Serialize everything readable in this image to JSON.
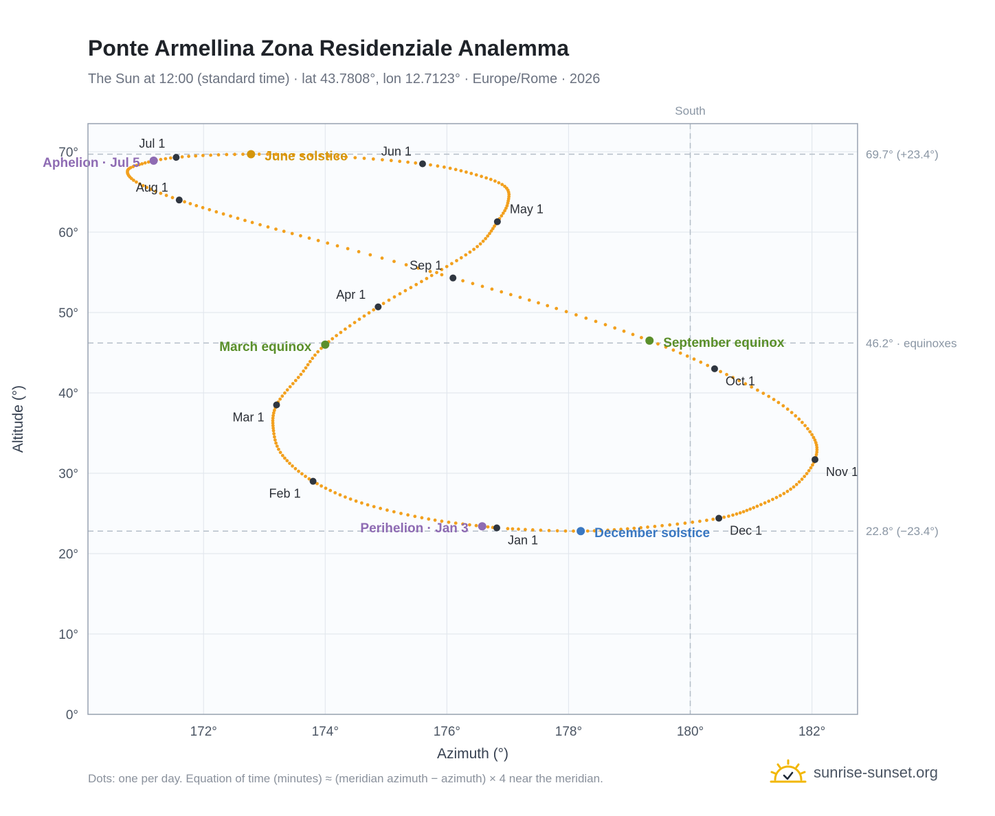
{
  "title": "Ponte Armellina Zona Residenziale Analemma",
  "subtitle": "The Sun at 12:00 (standard time) · lat 43.7808°, lon 12.7123° · Europe/Rome · 2026",
  "footnote": "Dots: one per day. Equation of time (minutes) ≈ (meridian azimuth − azimuth) × 4 near the meridian.",
  "brand": {
    "name": "sunrise-sunset.org",
    "icon": "sun-logo-icon",
    "color": "#f2b705"
  },
  "chart_data": {
    "type": "scatter",
    "xlabel": "Azimuth (°)",
    "ylabel": "Altitude (°)",
    "xlim": [
      170.1,
      182.75
    ],
    "ylim": [
      0,
      73.5
    ],
    "grid": true,
    "x_ticks": [
      172,
      174,
      176,
      178,
      180,
      182
    ],
    "x_tick_labels": [
      "172°",
      "174°",
      "176°",
      "178°",
      "180°",
      "182°"
    ],
    "y_ticks": [
      0,
      10,
      20,
      30,
      40,
      50,
      60,
      70
    ],
    "y_tick_labels": [
      "0°",
      "10°",
      "20°",
      "30°",
      "40°",
      "50°",
      "60°",
      "70°"
    ],
    "colors": {
      "curve": "#f2a01e",
      "month_marker": "#2f3640",
      "solstice_june": "#d4950b",
      "solstice_december": "#3a78c2",
      "equinox": "#5a8f2a",
      "apsis": "#8e6bb3",
      "reference_line": "#b4bec8",
      "plot_background": "#fafcfe",
      "plot_border": "#98a2b0",
      "grid": "#e3e8ee"
    },
    "reference_lines": {
      "south": {
        "x": 180,
        "label": "South"
      },
      "horizontal": [
        {
          "y": 69.7,
          "label": "69.7° (+23.4°)"
        },
        {
          "y": 46.2,
          "label": "46.2° · equinoxes"
        },
        {
          "y": 22.8,
          "label": "22.8° (−23.4°)"
        }
      ]
    },
    "curve_keypoints": [
      {
        "doy": 1,
        "x": 176.82,
        "y": 23.2
      },
      {
        "doy": 12,
        "x": 175.7,
        "y": 24.3
      },
      {
        "doy": 22,
        "x": 174.6,
        "y": 26.3
      },
      {
        "doy": 32,
        "x": 173.8,
        "y": 29.0
      },
      {
        "doy": 42,
        "x": 173.3,
        "y": 32.2
      },
      {
        "doy": 50,
        "x": 173.15,
        "y": 35.3
      },
      {
        "doy": 60,
        "x": 173.2,
        "y": 38.5
      },
      {
        "doy": 70,
        "x": 173.6,
        "y": 42.3
      },
      {
        "doy": 79,
        "x": 174.0,
        "y": 46.0
      },
      {
        "doy": 91,
        "x": 174.87,
        "y": 50.7
      },
      {
        "doy": 101,
        "x": 175.75,
        "y": 54.6
      },
      {
        "doy": 111,
        "x": 176.5,
        "y": 58.2
      },
      {
        "doy": 121,
        "x": 176.83,
        "y": 61.3
      },
      {
        "doy": 128,
        "x": 177.0,
        "y": 63.6
      },
      {
        "doy": 136,
        "x": 176.95,
        "y": 65.7
      },
      {
        "doy": 144,
        "x": 176.4,
        "y": 67.3
      },
      {
        "doy": 152,
        "x": 175.6,
        "y": 68.5
      },
      {
        "doy": 162,
        "x": 174.2,
        "y": 69.4
      },
      {
        "doy": 172,
        "x": 172.78,
        "y": 69.7
      },
      {
        "doy": 182,
        "x": 171.55,
        "y": 69.3
      },
      {
        "doy": 192,
        "x": 170.9,
        "y": 68.3
      },
      {
        "doy": 198,
        "x": 170.75,
        "y": 67.4
      },
      {
        "doy": 205,
        "x": 170.95,
        "y": 66.0
      },
      {
        "doy": 213,
        "x": 171.6,
        "y": 64.0
      },
      {
        "doy": 224,
        "x": 172.8,
        "y": 61.2
      },
      {
        "doy": 234,
        "x": 174.2,
        "y": 58.3
      },
      {
        "doy": 244,
        "x": 176.1,
        "y": 54.3
      },
      {
        "doy": 255,
        "x": 177.8,
        "y": 50.5
      },
      {
        "doy": 265,
        "x": 179.33,
        "y": 46.5
      },
      {
        "doy": 274,
        "x": 180.4,
        "y": 43.0
      },
      {
        "doy": 285,
        "x": 181.45,
        "y": 38.8
      },
      {
        "doy": 295,
        "x": 182.0,
        "y": 34.8
      },
      {
        "doy": 305,
        "x": 182.05,
        "y": 31.7
      },
      {
        "doy": 315,
        "x": 181.7,
        "y": 28.3
      },
      {
        "doy": 325,
        "x": 181.1,
        "y": 25.9
      },
      {
        "doy": 335,
        "x": 180.47,
        "y": 24.4
      },
      {
        "doy": 345,
        "x": 179.3,
        "y": 23.3
      },
      {
        "doy": 355,
        "x": 178.2,
        "y": 22.8
      },
      {
        "doy": 365,
        "x": 177.0,
        "y": 23.1
      }
    ],
    "month_markers": [
      {
        "label": "Jan 1",
        "x": 176.82,
        "y": 23.2,
        "anchor": "start",
        "dx": 16,
        "dy": 24
      },
      {
        "label": "Feb 1",
        "x": 173.8,
        "y": 29.0,
        "anchor": "end",
        "dx": -18,
        "dy": 24
      },
      {
        "label": "Mar 1",
        "x": 173.2,
        "y": 38.5,
        "anchor": "end",
        "dx": -18,
        "dy": 24
      },
      {
        "label": "Apr 1",
        "x": 174.87,
        "y": 50.7,
        "anchor": "end",
        "dx": -18,
        "dy": -12
      },
      {
        "label": "May 1",
        "x": 176.83,
        "y": 61.3,
        "anchor": "start",
        "dx": 18,
        "dy": -12
      },
      {
        "label": "Jun 1",
        "x": 175.6,
        "y": 68.5,
        "anchor": "end",
        "dx": -16,
        "dy": -12
      },
      {
        "label": "Jul 1",
        "x": 171.55,
        "y": 69.3,
        "anchor": "end",
        "dx": -16,
        "dy": -14
      },
      {
        "label": "Aug 1",
        "x": 171.6,
        "y": 64.0,
        "anchor": "end",
        "dx": -16,
        "dy": -12
      },
      {
        "label": "Sep 1",
        "x": 176.1,
        "y": 54.3,
        "anchor": "end",
        "dx": -16,
        "dy": -12
      },
      {
        "label": "Oct 1",
        "x": 180.4,
        "y": 43.0,
        "anchor": "start",
        "dx": 16,
        "dy": 24
      },
      {
        "label": "Nov 1",
        "x": 182.05,
        "y": 31.7,
        "anchor": "start",
        "dx": 16,
        "dy": 24
      },
      {
        "label": "Dec 1",
        "x": 180.47,
        "y": 24.4,
        "anchor": "start",
        "dx": 16,
        "dy": 24
      }
    ],
    "events": [
      {
        "label": "June solstice",
        "x": 172.78,
        "y": 69.7,
        "color": "#d4950b",
        "anchor": "start",
        "dx": 20,
        "dy": 9
      },
      {
        "label": "December solstice",
        "x": 178.2,
        "y": 22.8,
        "color": "#3a78c2",
        "anchor": "start",
        "dx": 20,
        "dy": 9
      },
      {
        "label": "March equinox",
        "x": 174.0,
        "y": 46.0,
        "color": "#5a8f2a",
        "anchor": "end",
        "dx": -20,
        "dy": 9
      },
      {
        "label": "September equinox",
        "x": 179.33,
        "y": 46.5,
        "color": "#5a8f2a",
        "anchor": "start",
        "dx": 20,
        "dy": 9
      },
      {
        "label": "Aphelion · Jul 5",
        "x": 171.18,
        "y": 68.9,
        "color": "#8e6bb3",
        "anchor": "end",
        "dx": -20,
        "dy": 9
      },
      {
        "label": "Perihelion · Jan 3",
        "x": 176.58,
        "y": 23.4,
        "color": "#8e6bb3",
        "anchor": "end",
        "dx": -20,
        "dy": 9
      }
    ]
  }
}
